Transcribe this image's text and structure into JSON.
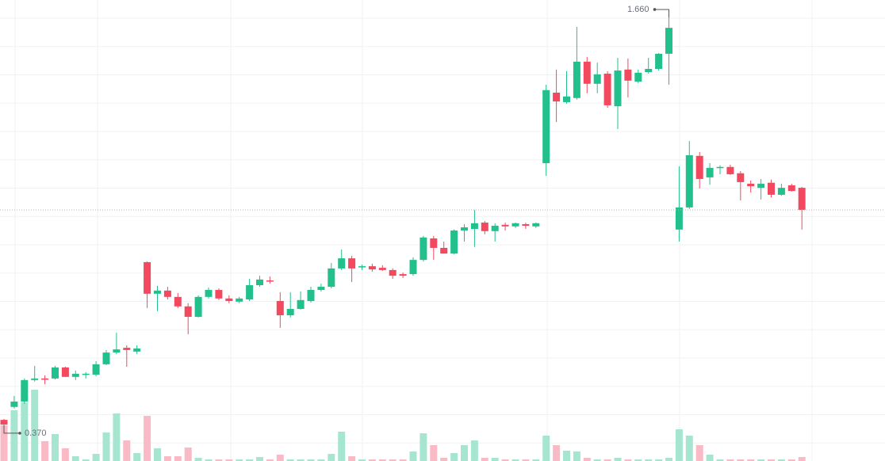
{
  "chart_data": {
    "type": "candlestick",
    "categories": [
      null,
      null,
      null,
      null,
      null,
      null,
      null,
      null,
      null,
      null,
      null,
      null,
      null,
      null,
      null,
      null,
      null,
      null,
      null,
      null,
      null,
      null,
      null,
      null,
      null,
      null,
      null,
      null,
      null,
      null,
      null,
      null,
      null,
      null,
      null,
      null,
      null,
      null,
      null,
      null,
      null,
      null,
      null,
      null,
      null,
      null,
      null,
      null,
      null,
      null,
      null,
      null,
      null,
      null,
      null,
      null,
      null,
      null,
      null,
      null,
      null,
      null,
      null,
      null,
      null,
      null,
      null,
      null,
      null,
      null,
      null,
      null,
      null,
      null,
      null,
      null,
      null,
      null,
      null
    ],
    "open": [
      0.387,
      0.428,
      0.445,
      0.513,
      0.518,
      0.518,
      0.553,
      0.523,
      0.53,
      0.53,
      0.563,
      0.6,
      0.615,
      0.603,
      0.886,
      0.786,
      0.796,
      0.776,
      0.746,
      0.713,
      0.776,
      0.798,
      0.771,
      0.761,
      0.768,
      0.813,
      0.828,
      0.763,
      0.718,
      0.738,
      0.763,
      0.798,
      0.808,
      0.866,
      0.898,
      0.871,
      0.873,
      0.868,
      0.861,
      0.848,
      0.848,
      0.893,
      0.961,
      0.931,
      0.913,
      0.986,
      0.991,
      1.011,
      0.984,
      1.004,
      0.999,
      1.006,
      0.999,
      1.199,
      1.422,
      1.392,
      1.405,
      1.52,
      1.45,
      1.482,
      1.379,
      1.495,
      1.457,
      1.487,
      1.497,
      1.545,
      0.989,
      1.059,
      1.222,
      1.154,
      1.184,
      1.187,
      1.167,
      1.134,
      1.121,
      1.137,
      1.099,
      1.129,
      1.121
    ],
    "high": [
      0.39,
      0.463,
      0.518,
      0.558,
      0.528,
      0.558,
      0.555,
      0.543,
      0.538,
      0.573,
      0.608,
      0.663,
      0.623,
      0.623,
      0.888,
      0.811,
      0.808,
      0.788,
      0.756,
      0.781,
      0.806,
      0.803,
      0.781,
      0.776,
      0.833,
      0.843,
      0.841,
      0.791,
      0.791,
      0.793,
      0.808,
      0.818,
      0.883,
      0.926,
      0.906,
      0.878,
      0.881,
      0.876,
      0.866,
      0.853,
      0.901,
      0.969,
      0.969,
      0.951,
      0.989,
      1.006,
      1.051,
      1.016,
      1.009,
      1.011,
      1.011,
      1.011,
      1.011,
      1.447,
      1.495,
      1.49,
      1.63,
      1.535,
      1.517,
      1.49,
      1.532,
      1.53,
      1.495,
      1.532,
      1.547,
      1.66,
      1.189,
      1.269,
      1.234,
      1.199,
      1.192,
      1.194,
      1.174,
      1.144,
      1.149,
      1.147,
      1.134,
      1.134,
      1.124
    ],
    "low": [
      0.37,
      0.423,
      0.438,
      0.508,
      0.5,
      0.515,
      0.523,
      0.513,
      0.518,
      0.525,
      0.56,
      0.595,
      0.555,
      0.595,
      0.741,
      0.731,
      0.768,
      0.741,
      0.658,
      0.711,
      0.771,
      0.766,
      0.756,
      0.756,
      0.763,
      0.808,
      0.818,
      0.678,
      0.711,
      0.736,
      0.758,
      0.793,
      0.803,
      0.861,
      0.823,
      0.861,
      0.856,
      0.858,
      0.833,
      0.836,
      0.843,
      0.888,
      0.893,
      0.913,
      0.911,
      0.951,
      0.934,
      0.974,
      0.951,
      0.986,
      0.994,
      0.991,
      0.994,
      1.159,
      1.329,
      1.387,
      1.4,
      1.42,
      1.42,
      1.374,
      1.307,
      1.407,
      1.452,
      1.482,
      1.492,
      1.447,
      0.951,
      1.054,
      1.119,
      1.131,
      1.164,
      1.162,
      1.081,
      1.106,
      1.084,
      1.091,
      1.096,
      1.109,
      0.989
    ],
    "close": [
      0.372,
      0.445,
      0.513,
      0.518,
      0.515,
      0.553,
      0.523,
      0.533,
      0.533,
      0.563,
      0.6,
      0.61,
      0.608,
      0.613,
      0.786,
      0.796,
      0.776,
      0.746,
      0.713,
      0.776,
      0.798,
      0.771,
      0.763,
      0.771,
      0.813,
      0.831,
      0.826,
      0.718,
      0.738,
      0.766,
      0.798,
      0.808,
      0.866,
      0.898,
      0.866,
      0.873,
      0.863,
      0.861,
      0.843,
      0.843,
      0.893,
      0.964,
      0.931,
      0.913,
      0.986,
      0.996,
      1.009,
      0.984,
      1.001,
      0.999,
      1.009,
      1.001,
      1.009,
      1.43,
      1.394,
      1.41,
      1.52,
      1.45,
      1.48,
      1.382,
      1.492,
      1.46,
      1.485,
      1.497,
      1.545,
      1.627,
      1.059,
      1.224,
      1.149,
      1.184,
      1.187,
      1.164,
      1.139,
      1.126,
      1.134,
      1.099,
      1.121,
      1.111,
      1.051
    ],
    "volume": [
      45,
      64,
      74,
      90,
      25,
      34,
      16,
      6,
      2,
      9,
      36,
      60,
      26,
      10,
      57,
      16,
      6,
      6,
      17,
      4,
      2,
      2,
      2,
      2,
      2,
      5,
      2,
      8,
      2,
      2,
      2,
      2,
      9,
      37,
      6,
      2,
      2,
      2,
      2,
      2,
      12,
      35,
      20,
      4,
      10,
      20,
      26,
      4,
      4,
      2,
      2,
      2,
      2,
      32,
      20,
      13,
      12,
      4,
      2,
      2,
      4,
      2,
      2,
      2,
      2,
      4,
      40,
      32,
      20,
      8,
      2,
      2,
      2,
      2,
      2,
      2,
      2,
      2,
      5
    ],
    "ylim": [
      0.257,
      1.715
    ],
    "vlim": [
      0,
      100
    ],
    "up_color": "#22c08c",
    "down_color": "#f2495f",
    "volume_up_color": "#a6e6d1",
    "volume_down_color": "#f9bac6",
    "grid": true,
    "annotations": [
      {
        "value": 1.66,
        "label": "1.660"
      },
      {
        "value": 0.37,
        "label": "0.370"
      }
    ]
  }
}
